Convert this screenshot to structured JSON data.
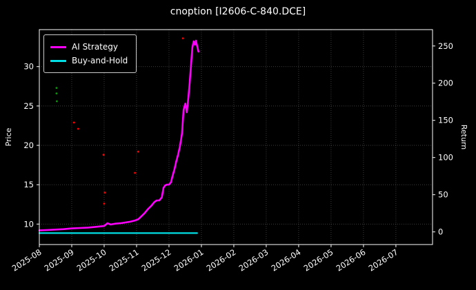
{
  "title": "cnoption [I2606-C-840.DCE]",
  "colors": {
    "background": "#000000",
    "text": "#ffffff",
    "grid": "#9a9a9a",
    "spine": "#ffffff"
  },
  "chart_data": {
    "type": "line",
    "title": "cnoption [I2606-C-840.DCE]",
    "xlabel": "",
    "ylabel_left": "Price",
    "ylabel_right": "Return",
    "x_tick_labels": [
      "2025-08",
      "2025-09",
      "2025-10",
      "2025-11",
      "2025-12",
      "2026-01",
      "2026-02",
      "2026-03",
      "2026-04",
      "2026-05",
      "2026-06",
      "2026-07"
    ],
    "xlim_months": [
      0,
      12.13
    ],
    "ylim_price": [
      7.4,
      34.7
    ],
    "yticks_price": [
      10,
      15,
      20,
      25,
      30
    ],
    "ylim_return": [
      -17,
      272
    ],
    "yticks_return": [
      0,
      50,
      100,
      150,
      200,
      250
    ],
    "grid": "dotted",
    "legend": {
      "position": "upper-left",
      "entries": [
        {
          "label": "AI Strategy",
          "color": "#ff00ff"
        },
        {
          "label": "Buy-and-Hold",
          "color": "#00e0e6"
        }
      ]
    },
    "series": [
      {
        "name": "AI Strategy",
        "axis": "price",
        "color": "#ff00ff",
        "width": 2.6,
        "x": [
          0,
          0.25,
          0.5,
          0.75,
          1.0,
          1.25,
          1.5,
          1.75,
          2.0,
          2.1,
          2.2,
          2.35,
          2.5,
          2.65,
          2.8,
          2.95,
          3.05,
          3.15,
          3.25,
          3.35,
          3.45,
          3.55,
          3.62,
          3.7,
          3.78,
          3.83,
          3.88,
          3.93,
          4.0,
          4.06,
          4.11,
          4.17,
          4.22,
          4.28,
          4.34,
          4.4,
          4.45,
          4.5,
          4.55,
          4.6,
          4.64,
          4.68,
          4.72,
          4.76,
          4.8,
          4.83,
          4.87,
          4.91
        ],
        "y": [
          9.2,
          9.25,
          9.3,
          9.35,
          9.45,
          9.5,
          9.55,
          9.65,
          9.75,
          10.1,
          9.95,
          10.05,
          10.1,
          10.2,
          10.3,
          10.45,
          10.6,
          11.0,
          11.4,
          11.9,
          12.3,
          12.8,
          13.0,
          13.0,
          13.4,
          14.6,
          14.9,
          15.0,
          15.0,
          15.3,
          16.1,
          17.0,
          17.9,
          18.8,
          19.9,
          21.5,
          24.5,
          25.3,
          24.2,
          26.2,
          28.0,
          30.2,
          32.4,
          33.2,
          32.8,
          33.3,
          32.6,
          31.9
        ]
      },
      {
        "name": "Buy-and-Hold",
        "axis": "price",
        "color": "#00e0e6",
        "width": 2.2,
        "x": [
          0,
          4.87
        ],
        "y": [
          8.85,
          8.85
        ]
      }
    ],
    "scatter": [
      {
        "name": "signal-green",
        "color": "#00a000",
        "points": [
          [
            0.53,
            27.3
          ],
          [
            0.53,
            26.6
          ],
          [
            0.54,
            25.6
          ]
        ]
      },
      {
        "name": "signal-red",
        "color": "#ff0000",
        "points": [
          [
            1.07,
            22.9
          ],
          [
            1.2,
            22.1
          ],
          [
            1.98,
            18.8
          ],
          [
            2.02,
            14.0
          ],
          [
            2.95,
            16.5
          ],
          [
            3.05,
            19.2
          ],
          [
            2.0,
            12.6
          ],
          [
            4.43,
            33.6
          ]
        ]
      }
    ]
  }
}
